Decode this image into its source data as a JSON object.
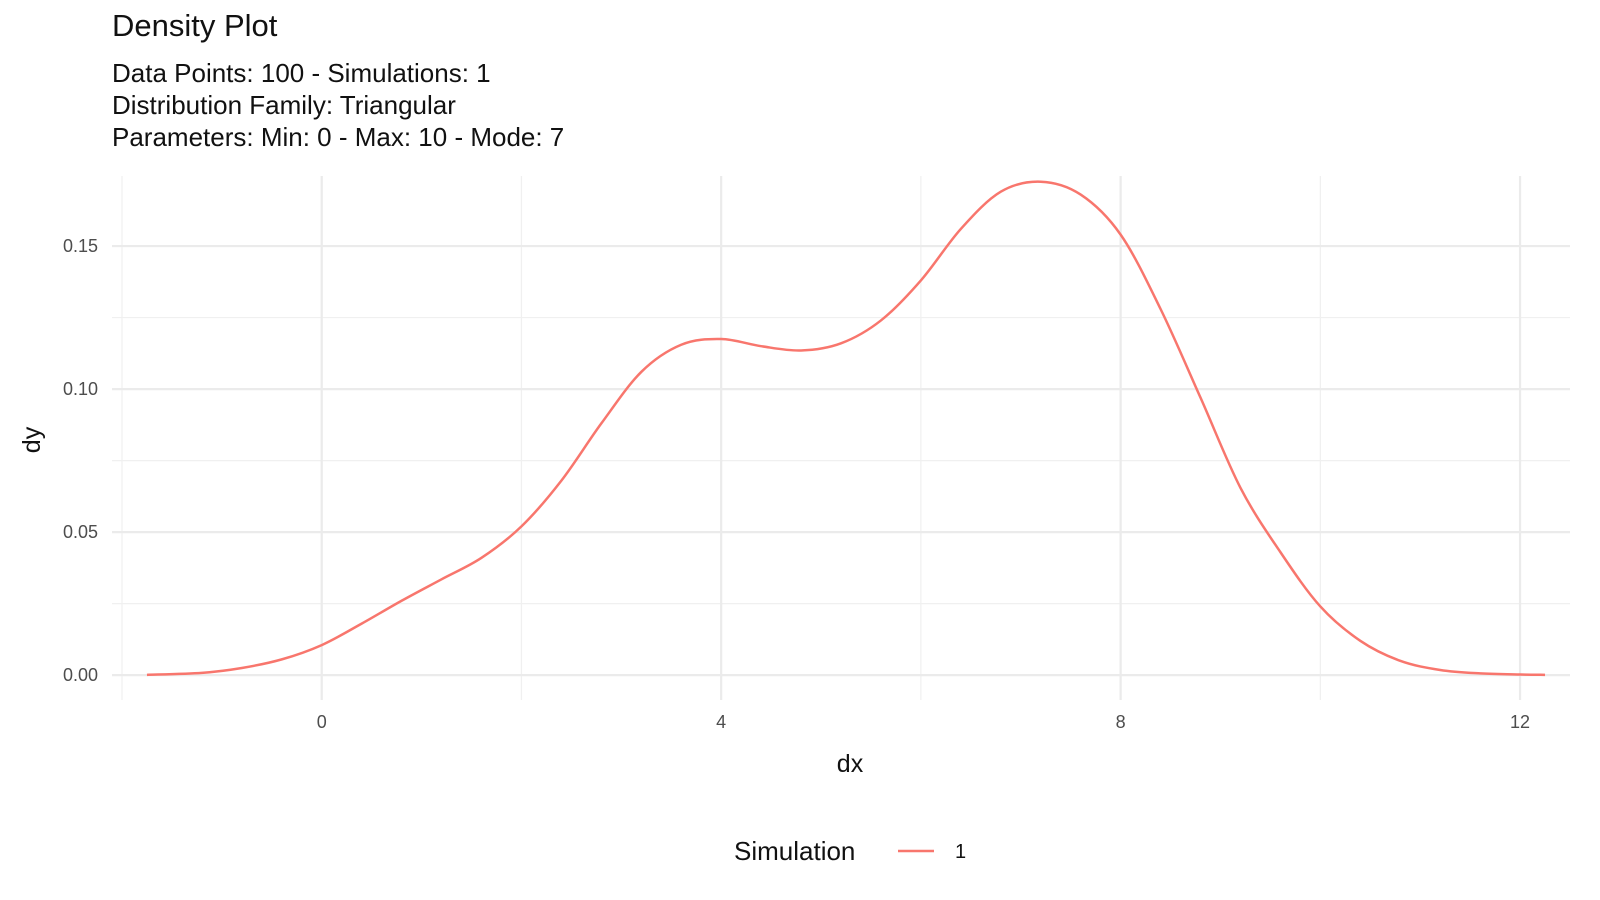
{
  "chart_data": {
    "type": "line",
    "title": "Density Plot",
    "subtitle_lines": [
      "Data Points: 100 - Simulations: 1",
      "Distribution Family: Triangular",
      "Parameters: Min: 0 - Max: 10 - Mode: 7"
    ],
    "xlabel": "dx",
    "ylabel": "dy",
    "xlim": [
      -2.1,
      12.5
    ],
    "ylim": [
      -0.0087,
      0.1745
    ],
    "x_ticks": [
      0,
      4,
      8,
      12
    ],
    "x_tick_labels": [
      "0",
      "4",
      "8",
      "12"
    ],
    "y_ticks": [
      0.0,
      0.05,
      0.1,
      0.15
    ],
    "y_tick_labels": [
      "0.00",
      "0.05",
      "0.10",
      "0.15"
    ],
    "grid": true,
    "legend": {
      "title": "Simulation",
      "position": "bottom"
    },
    "series": [
      {
        "name": "1",
        "color": "#F8766D",
        "x": [
          -1.75,
          -1.2,
          -0.8,
          -0.4,
          0.0,
          0.4,
          0.8,
          1.2,
          1.6,
          2.0,
          2.4,
          2.8,
          3.2,
          3.6,
          4.0,
          4.4,
          4.8,
          5.2,
          5.6,
          6.0,
          6.4,
          6.8,
          7.2,
          7.6,
          8.0,
          8.4,
          8.8,
          9.2,
          9.6,
          10.0,
          10.4,
          10.8,
          11.2,
          11.6,
          12.0,
          12.25
        ],
        "y": [
          0.0001,
          0.0008,
          0.0025,
          0.0055,
          0.0105,
          0.018,
          0.026,
          0.0335,
          0.041,
          0.052,
          0.068,
          0.088,
          0.106,
          0.1155,
          0.1175,
          0.115,
          0.1135,
          0.116,
          0.124,
          0.138,
          0.156,
          0.169,
          0.1725,
          0.168,
          0.154,
          0.128,
          0.097,
          0.0655,
          0.043,
          0.024,
          0.012,
          0.005,
          0.0018,
          0.0006,
          0.0002,
          0.0001
        ]
      }
    ]
  }
}
